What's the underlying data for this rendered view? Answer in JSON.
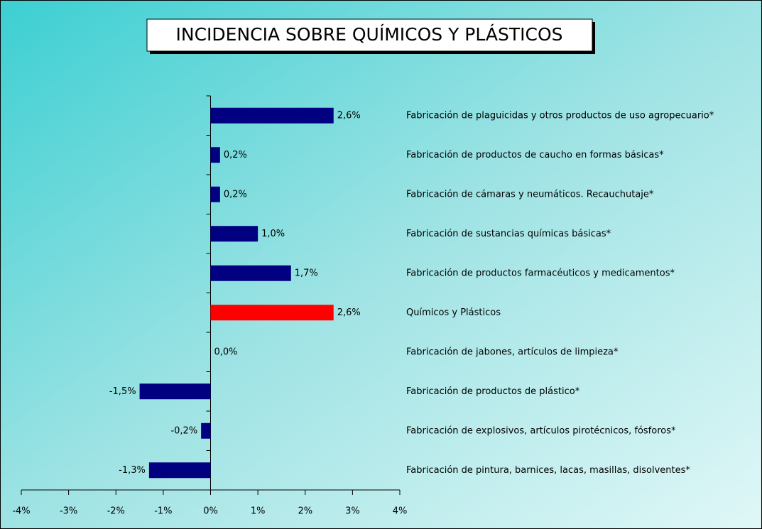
{
  "chart_data": {
    "type": "hbar",
    "title": "INCIDENCIA SOBRE QUÍMICOS Y PLÁSTICOS",
    "categories": [
      "Fabricación de plaguicidas y otros productos de uso agropecuario*",
      "Fabricación de productos de caucho en formas básicas*",
      "Fabricación de cámaras y neumáticos. Recauchutaje*",
      "Fabricación de sustancias químicas básicas*",
      "Fabricación de productos farmacéuticos y medicamentos*",
      "Químicos y Plásticos",
      "Fabricación de jabones, artículos de limpieza*",
      "Fabricación de productos de plástico*",
      "Fabricación de explosivos, artículos pirotécnicos, fósforos*",
      "Fabricación de pintura, barnices, lacas, masillas, disolventes*"
    ],
    "values": [
      2.6,
      0.2,
      0.2,
      1.0,
      1.7,
      2.6,
      0.0,
      -1.5,
      -0.2,
      -1.3
    ],
    "value_labels": [
      "2,6%",
      "0,2%",
      "0,2%",
      "1,0%",
      "1,7%",
      "2,6%",
      "0,0%",
      "-1,5%",
      "-0,2%",
      "-1,3%"
    ],
    "colors": [
      "#000080",
      "#000080",
      "#000080",
      "#000080",
      "#000080",
      "#ff0000",
      "#000080",
      "#000080",
      "#000080",
      "#000080"
    ],
    "xlim": [
      -4,
      4
    ],
    "xticks": [
      {
        "value": -4,
        "label": "-4%"
      },
      {
        "value": -3,
        "label": "-3%"
      },
      {
        "value": -2,
        "label": "-2%"
      },
      {
        "value": -1,
        "label": "-1%"
      },
      {
        "value": 0,
        "label": "0%"
      },
      {
        "value": 1,
        "label": "1%"
      },
      {
        "value": 2,
        "label": "2%"
      },
      {
        "value": 3,
        "label": "3%"
      },
      {
        "value": 4,
        "label": "4%"
      }
    ],
    "grid": false
  }
}
